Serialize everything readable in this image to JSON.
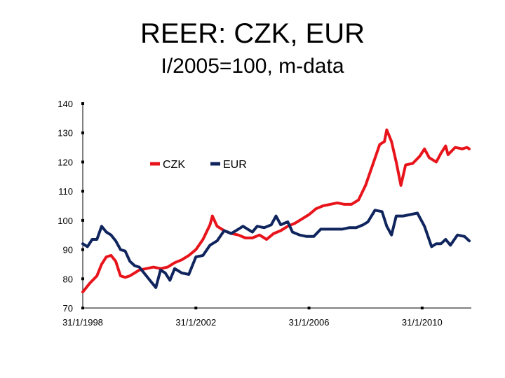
{
  "title": "REER: CZK, EUR",
  "subtitle": "I/2005=100, m-data",
  "colors": {
    "CZK": "#e8141b",
    "EUR": "#10255e"
  },
  "chart_data": {
    "type": "line",
    "title": "REER: CZK, EUR",
    "subtitle": "I/2005=100, m-data",
    "xlabel": "",
    "ylabel": "",
    "x_ticks": [
      "31/1/1998",
      "31/1/2002",
      "31/1/2006",
      "31/1/2010"
    ],
    "y_ticks": [
      "70",
      "80",
      "90",
      "100",
      "110",
      "120",
      "130",
      "140"
    ],
    "ylim": [
      70,
      140
    ],
    "xlim": [
      "1998-01",
      "2011-09"
    ],
    "grid": false,
    "legend": "top-center",
    "series": [
      {
        "name": "CZK",
        "color": "#e8141b",
        "points": [
          [
            "1998-01",
            75.5
          ],
          [
            "1998-04",
            78.5
          ],
          [
            "1998-07",
            81
          ],
          [
            "1998-09",
            85
          ],
          [
            "1998-11",
            87.5
          ],
          [
            "1999-01",
            88
          ],
          [
            "1999-03",
            86
          ],
          [
            "1999-05",
            81
          ],
          [
            "1999-07",
            80.5
          ],
          [
            "1999-09",
            81
          ],
          [
            "1999-11",
            82
          ],
          [
            "2000-01",
            83
          ],
          [
            "2000-04",
            83.5
          ],
          [
            "2000-07",
            84
          ],
          [
            "2000-10",
            83.5
          ],
          [
            "2001-01",
            84
          ],
          [
            "2001-04",
            85.5
          ],
          [
            "2001-07",
            86.5
          ],
          [
            "2001-10",
            88
          ],
          [
            "2002-01",
            90
          ],
          [
            "2002-04",
            93.5
          ],
          [
            "2002-07",
            98.5
          ],
          [
            "2002-08",
            101.5
          ],
          [
            "2002-10",
            98
          ],
          [
            "2003-01",
            96.5
          ],
          [
            "2003-04",
            95.5
          ],
          [
            "2003-07",
            95
          ],
          [
            "2003-10",
            94
          ],
          [
            "2004-01",
            94
          ],
          [
            "2004-04",
            95
          ],
          [
            "2004-07",
            93.5
          ],
          [
            "2004-10",
            95.5
          ],
          [
            "2005-01",
            96.5
          ],
          [
            "2005-04",
            98
          ],
          [
            "2005-07",
            99
          ],
          [
            "2005-10",
            100.5
          ],
          [
            "2006-01",
            102
          ],
          [
            "2006-04",
            104
          ],
          [
            "2006-07",
            105
          ],
          [
            "2006-10",
            105.5
          ],
          [
            "2007-01",
            106
          ],
          [
            "2007-04",
            105.5
          ],
          [
            "2007-07",
            105.5
          ],
          [
            "2007-10",
            107
          ],
          [
            "2008-01",
            112
          ],
          [
            "2008-04",
            119
          ],
          [
            "2008-07",
            126
          ],
          [
            "2008-09",
            127
          ],
          [
            "2008-10",
            131
          ],
          [
            "2008-12",
            127
          ],
          [
            "2009-02",
            120
          ],
          [
            "2009-04",
            112
          ],
          [
            "2009-06",
            119
          ],
          [
            "2009-09",
            119.5
          ],
          [
            "2009-12",
            122
          ],
          [
            "2010-02",
            124.5
          ],
          [
            "2010-04",
            121.5
          ],
          [
            "2010-07",
            120
          ],
          [
            "2010-09",
            123
          ],
          [
            "2010-11",
            125.5
          ],
          [
            "2010-12",
            122.5
          ],
          [
            "2011-03",
            125
          ],
          [
            "2011-06",
            124.5
          ],
          [
            "2011-08",
            125
          ],
          [
            "2011-09",
            124.5
          ]
        ]
      },
      {
        "name": "EUR",
        "color": "#10255e",
        "points": [
          [
            "1998-01",
            92
          ],
          [
            "1998-03",
            91
          ],
          [
            "1998-05",
            93.5
          ],
          [
            "1998-07",
            93.5
          ],
          [
            "1998-09",
            98
          ],
          [
            "1998-11",
            96
          ],
          [
            "1999-01",
            95
          ],
          [
            "1999-03",
            93
          ],
          [
            "1999-05",
            90
          ],
          [
            "1999-07",
            89.5
          ],
          [
            "1999-09",
            86
          ],
          [
            "1999-11",
            84.5
          ],
          [
            "2000-01",
            84
          ],
          [
            "2000-04",
            81
          ],
          [
            "2000-06",
            79
          ],
          [
            "2000-08",
            77
          ],
          [
            "2000-10",
            83
          ],
          [
            "2000-12",
            82
          ],
          [
            "2001-02",
            79.5
          ],
          [
            "2001-04",
            83.5
          ],
          [
            "2001-07",
            82
          ],
          [
            "2001-10",
            81.5
          ],
          [
            "2002-01",
            87.5
          ],
          [
            "2002-04",
            88
          ],
          [
            "2002-07",
            91.5
          ],
          [
            "2002-10",
            93
          ],
          [
            "2003-01",
            96.5
          ],
          [
            "2003-04",
            95.5
          ],
          [
            "2003-07",
            97
          ],
          [
            "2003-09",
            98
          ],
          [
            "2003-11",
            97
          ],
          [
            "2004-01",
            96
          ],
          [
            "2004-03",
            98
          ],
          [
            "2004-06",
            97.5
          ],
          [
            "2004-09",
            98.5
          ],
          [
            "2004-11",
            101.5
          ],
          [
            "2005-01",
            98.5
          ],
          [
            "2005-04",
            99.5
          ],
          [
            "2005-06",
            96
          ],
          [
            "2005-09",
            95
          ],
          [
            "2005-12",
            94.5
          ],
          [
            "2006-03",
            94.5
          ],
          [
            "2006-06",
            97
          ],
          [
            "2006-09",
            97
          ],
          [
            "2006-12",
            97
          ],
          [
            "2007-03",
            97
          ],
          [
            "2007-06",
            97.5
          ],
          [
            "2007-09",
            97.5
          ],
          [
            "2007-12",
            98.5
          ],
          [
            "2008-02",
            99.5
          ],
          [
            "2008-05",
            103.5
          ],
          [
            "2008-08",
            103
          ],
          [
            "2008-10",
            98
          ],
          [
            "2008-12",
            95
          ],
          [
            "2009-02",
            101.5
          ],
          [
            "2009-05",
            101.5
          ],
          [
            "2009-08",
            102
          ],
          [
            "2009-11",
            102.5
          ],
          [
            "2010-02",
            98
          ],
          [
            "2010-05",
            91
          ],
          [
            "2010-07",
            92
          ],
          [
            "2010-09",
            92
          ],
          [
            "2010-11",
            93.5
          ],
          [
            "2011-01",
            91.5
          ],
          [
            "2011-04",
            95
          ],
          [
            "2011-07",
            94.5
          ],
          [
            "2011-09",
            93
          ]
        ]
      }
    ]
  }
}
